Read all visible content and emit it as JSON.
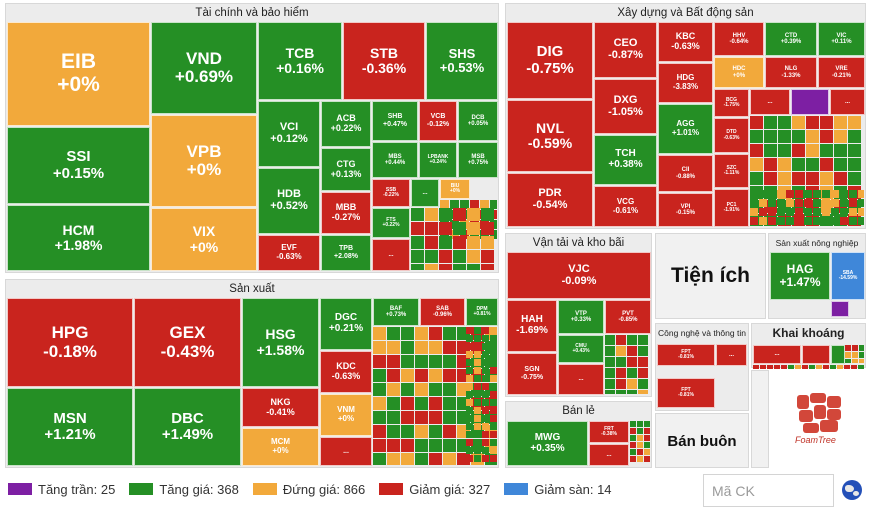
{
  "sectors": [
    {
      "id": "tai-chinh",
      "title": "Tài chính và bảo hiểm",
      "l": 5,
      "t": 3,
      "w": 494,
      "h": 270,
      "style": ""
    },
    {
      "id": "xay-dung",
      "title": "Xây dựng và Bất động sản",
      "l": 505,
      "t": 3,
      "w": 361,
      "h": 226,
      "style": ""
    },
    {
      "id": "san-xuat",
      "title": "Sản xuất",
      "l": 5,
      "t": 279,
      "w": 494,
      "h": 189,
      "style": ""
    },
    {
      "id": "van-tai",
      "title": "Vận tải và kho bãi",
      "l": 505,
      "t": 233,
      "w": 147,
      "h": 164,
      "style": ""
    },
    {
      "id": "ban-le",
      "title": "Bán lẻ",
      "l": 505,
      "t": 401,
      "w": 147,
      "h": 67,
      "style": ""
    },
    {
      "id": "san-xuat-nong-nghiep",
      "title": "Sản xuất nông nghiệp",
      "l": 768,
      "t": 233,
      "w": 98,
      "h": 86,
      "style": "small"
    },
    {
      "id": "cong-nghe",
      "title": "Công nghệ và thông tin",
      "l": 655,
      "t": 323,
      "w": 94,
      "h": 88,
      "style": "small"
    },
    {
      "id": "khai-khoang",
      "title": "Khai khoáng",
      "l": 751,
      "t": 323,
      "w": 115,
      "h": 45,
      "style": "bold"
    }
  ],
  "big_labels": [
    {
      "name": "tien-ich-label",
      "text": "Tiện ích",
      "l": 655,
      "t": 233,
      "w": 111,
      "h": 86,
      "size": 21
    },
    {
      "name": "ban-buon-label",
      "text": "Bán buôn",
      "l": 655,
      "t": 413,
      "w": 94,
      "h": 55,
      "size": 15
    }
  ],
  "stocks": [
    {
      "sym": "EIB",
      "chg": "+0%",
      "c": "flat",
      "l": 7,
      "t": 22,
      "w": 143,
      "h": 104,
      "fs": 21
    },
    {
      "sym": "VND",
      "chg": "+0.69%",
      "c": "up",
      "l": 151,
      "t": 22,
      "w": 106,
      "h": 92,
      "fs": 17
    },
    {
      "sym": "TCB",
      "chg": "+0.16%",
      "c": "up",
      "l": 258,
      "t": 22,
      "w": 84,
      "h": 78,
      "fs": 14
    },
    {
      "sym": "STB",
      "chg": "-0.36%",
      "c": "down",
      "l": 343,
      "t": 22,
      "w": 82,
      "h": 78,
      "fs": 14
    },
    {
      "sym": "SHS",
      "chg": "+0.53%",
      "c": "up",
      "l": 426,
      "t": 22,
      "w": 72,
      "h": 78,
      "fs": 13
    },
    {
      "sym": "SSI",
      "chg": "+0.15%",
      "c": "up",
      "l": 7,
      "t": 127,
      "w": 143,
      "h": 77,
      "fs": 15
    },
    {
      "sym": "VPB",
      "chg": "+0%",
      "c": "flat",
      "l": 151,
      "t": 115,
      "w": 106,
      "h": 92,
      "fs": 17
    },
    {
      "sym": "VCI",
      "chg": "+0.12%",
      "c": "up",
      "l": 258,
      "t": 101,
      "w": 62,
      "h": 66,
      "fs": 11
    },
    {
      "sym": "ACB",
      "chg": "+0.22%",
      "c": "up",
      "l": 321,
      "t": 101,
      "w": 50,
      "h": 46,
      "fs": 9
    },
    {
      "sym": "SHB",
      "chg": "+0.47%",
      "c": "up",
      "l": 372,
      "t": 101,
      "w": 46,
      "h": 40,
      "fs": 7
    },
    {
      "sym": "VCB",
      "chg": "-0.12%",
      "c": "down",
      "l": 419,
      "t": 101,
      "w": 38,
      "h": 40,
      "fs": 7
    },
    {
      "sym": "DCB",
      "chg": "+0.05%",
      "c": "up",
      "l": 458,
      "t": 101,
      "w": 40,
      "h": 40,
      "fs": 6
    },
    {
      "sym": "CTG",
      "chg": "+0.13%",
      "c": "up",
      "l": 321,
      "t": 148,
      "w": 50,
      "h": 43,
      "fs": 9
    },
    {
      "sym": "MBS",
      "chg": "+0.44%",
      "c": "up",
      "l": 372,
      "t": 142,
      "w": 46,
      "h": 36,
      "fs": 6
    },
    {
      "sym": "LPBANK",
      "chg": "+0.24%",
      "c": "up",
      "l": 419,
      "t": 142,
      "w": 38,
      "h": 36,
      "fs": 5
    },
    {
      "sym": "MSB",
      "chg": "+0.75%",
      "c": "up",
      "l": 458,
      "t": 142,
      "w": 40,
      "h": 36,
      "fs": 6
    },
    {
      "sym": "HDB",
      "chg": "+0.52%",
      "c": "up",
      "l": 258,
      "t": 168,
      "w": 62,
      "h": 66,
      "fs": 11
    },
    {
      "sym": "MBB",
      "chg": "-0.27%",
      "c": "down",
      "l": 321,
      "t": 192,
      "w": 50,
      "h": 42,
      "fs": 9
    },
    {
      "sym": "SSB",
      "chg": "-0.22%",
      "c": "down",
      "l": 372,
      "t": 179,
      "w": 38,
      "h": 28,
      "fs": 5
    },
    {
      "sym": "...",
      "chg": "",
      "c": "up",
      "l": 411,
      "t": 179,
      "w": 28,
      "h": 28,
      "fs": 6
    },
    {
      "sym": "BIU",
      "chg": "+0%",
      "c": "flat",
      "l": 440,
      "t": 179,
      "w": 30,
      "h": 20,
      "fs": 5
    },
    {
      "sym": "HCM",
      "chg": "+1.98%",
      "c": "up",
      "l": 7,
      "t": 205,
      "w": 143,
      "h": 66,
      "fs": 14
    },
    {
      "sym": "VIX",
      "chg": "+0%",
      "c": "flat",
      "l": 151,
      "t": 208,
      "w": 106,
      "h": 63,
      "fs": 14
    },
    {
      "sym": "FTS",
      "chg": "+0.22%",
      "c": "up",
      "l": 372,
      "t": 208,
      "w": 38,
      "h": 30,
      "fs": 5
    },
    {
      "sym": "EVF",
      "chg": "-0.63%",
      "c": "down",
      "l": 258,
      "t": 235,
      "w": 62,
      "h": 36,
      "fs": 8
    },
    {
      "sym": "TPB",
      "chg": "+2.08%",
      "c": "up",
      "l": 321,
      "t": 235,
      "w": 50,
      "h": 36,
      "fs": 7
    },
    {
      "sym": "...",
      "chg": "",
      "c": "down",
      "l": 372,
      "t": 239,
      "w": 38,
      "h": 32,
      "fs": 6
    },
    {
      "sym": "HPG",
      "chg": "-0.18%",
      "c": "down",
      "l": 7,
      "t": 298,
      "w": 126,
      "h": 89,
      "fs": 17
    },
    {
      "sym": "GEX",
      "chg": "-0.43%",
      "c": "down",
      "l": 134,
      "t": 298,
      "w": 107,
      "h": 89,
      "fs": 17
    },
    {
      "sym": "HSG",
      "chg": "+1.58%",
      "c": "up",
      "l": 242,
      "t": 298,
      "w": 77,
      "h": 89,
      "fs": 14
    },
    {
      "sym": "DGC",
      "chg": "+0.21%",
      "c": "up",
      "l": 320,
      "t": 298,
      "w": 52,
      "h": 52,
      "fs": 10
    },
    {
      "sym": "BAF",
      "chg": "+0.73%",
      "c": "up",
      "l": 373,
      "t": 298,
      "w": 46,
      "h": 28,
      "fs": 6
    },
    {
      "sym": "SAB",
      "chg": "-0.96%",
      "c": "down",
      "l": 420,
      "t": 298,
      "w": 45,
      "h": 28,
      "fs": 6
    },
    {
      "sym": "DPM",
      "chg": "+0.81%",
      "c": "up",
      "l": 466,
      "t": 298,
      "w": 32,
      "h": 28,
      "fs": 5
    },
    {
      "sym": "KDC",
      "chg": "-0.63%",
      "c": "down",
      "l": 320,
      "t": 351,
      "w": 52,
      "h": 42,
      "fs": 9
    },
    {
      "sym": "MSN",
      "chg": "+1.21%",
      "c": "up",
      "l": 7,
      "t": 388,
      "w": 126,
      "h": 78,
      "fs": 15
    },
    {
      "sym": "DBC",
      "chg": "+1.49%",
      "c": "up",
      "l": 134,
      "t": 388,
      "w": 107,
      "h": 78,
      "fs": 15
    },
    {
      "sym": "NKG",
      "chg": "-0.41%",
      "c": "down",
      "l": 242,
      "t": 388,
      "w": 77,
      "h": 39,
      "fs": 9
    },
    {
      "sym": "VNM",
      "chg": "+0%",
      "c": "flat",
      "l": 320,
      "t": 394,
      "w": 52,
      "h": 42,
      "fs": 8
    },
    {
      "sym": "MCM",
      "chg": "+0%",
      "c": "flat",
      "l": 242,
      "t": 428,
      "w": 77,
      "h": 38,
      "fs": 8
    },
    {
      "sym": "...",
      "chg": "",
      "c": "down",
      "l": 320,
      "t": 437,
      "w": 52,
      "h": 29,
      "fs": 7
    },
    {
      "sym": "DIG",
      "chg": "-0.75%",
      "c": "down",
      "l": 507,
      "t": 22,
      "w": 86,
      "h": 77,
      "fs": 15
    },
    {
      "sym": "CEO",
      "chg": "-0.87%",
      "c": "down",
      "l": 594,
      "t": 22,
      "w": 63,
      "h": 56,
      "fs": 11
    },
    {
      "sym": "KBC",
      "chg": "-0.63%",
      "c": "down",
      "l": 658,
      "t": 22,
      "w": 55,
      "h": 40,
      "fs": 9
    },
    {
      "sym": "HHV",
      "chg": "-0.64%",
      "c": "down",
      "l": 714,
      "t": 22,
      "w": 50,
      "h": 34,
      "fs": 6
    },
    {
      "sym": "CTD",
      "chg": "+0.39%",
      "c": "up",
      "l": 765,
      "t": 22,
      "w": 52,
      "h": 34,
      "fs": 6
    },
    {
      "sym": "VIC",
      "chg": "+0.11%",
      "c": "up",
      "l": 818,
      "t": 22,
      "w": 47,
      "h": 34,
      "fs": 6
    },
    {
      "sym": "HDG",
      "chg": "-3.83%",
      "c": "down",
      "l": 658,
      "t": 63,
      "w": 55,
      "h": 40,
      "fs": 8
    },
    {
      "sym": "HDC",
      "chg": "+0%",
      "c": "flat",
      "l": 714,
      "t": 57,
      "w": 50,
      "h": 31,
      "fs": 6
    },
    {
      "sym": "NLG",
      "chg": "-1.33%",
      "c": "down",
      "l": 765,
      "t": 57,
      "w": 52,
      "h": 31,
      "fs": 6
    },
    {
      "sym": "VRE",
      "chg": "-0.21%",
      "c": "down",
      "l": 818,
      "t": 57,
      "w": 47,
      "h": 31,
      "fs": 6
    },
    {
      "sym": "DXG",
      "chg": "-1.05%",
      "c": "down",
      "l": 594,
      "t": 79,
      "w": 63,
      "h": 55,
      "fs": 11
    },
    {
      "sym": "BCG",
      "chg": "-1.75%",
      "c": "down",
      "l": 714,
      "t": 89,
      "w": 35,
      "h": 28,
      "fs": 5
    },
    {
      "sym": "...",
      "chg": "",
      "c": "down",
      "l": 750,
      "t": 89,
      "w": 40,
      "h": 26,
      "fs": 6
    },
    {
      "sym": "",
      "chg": "",
      "c": "ceil",
      "l": 791,
      "t": 89,
      "w": 38,
      "h": 26,
      "fs": 6
    },
    {
      "sym": "...",
      "chg": "",
      "c": "down",
      "l": 830,
      "t": 89,
      "w": 35,
      "h": 26,
      "fs": 6
    },
    {
      "sym": "NVL",
      "chg": "-0.59%",
      "c": "down",
      "l": 507,
      "t": 100,
      "w": 86,
      "h": 72,
      "fs": 14
    },
    {
      "sym": "AGG",
      "chg": "+1.01%",
      "c": "up",
      "l": 658,
      "t": 104,
      "w": 55,
      "h": 50,
      "fs": 8
    },
    {
      "sym": "DTD",
      "chg": "-0.63%",
      "c": "down",
      "l": 714,
      "t": 118,
      "w": 35,
      "h": 35,
      "fs": 5
    },
    {
      "sym": "TCH",
      "chg": "+0.38%",
      "c": "up",
      "l": 594,
      "t": 135,
      "w": 63,
      "h": 50,
      "fs": 10
    },
    {
      "sym": "CII",
      "chg": "-0.88%",
      "c": "down",
      "l": 658,
      "t": 155,
      "w": 55,
      "h": 37,
      "fs": 6
    },
    {
      "sym": "SZC",
      "chg": "-1.11%",
      "c": "down",
      "l": 714,
      "t": 154,
      "w": 35,
      "h": 34,
      "fs": 5
    },
    {
      "sym": "PDR",
      "chg": "-0.54%",
      "c": "down",
      "l": 507,
      "t": 173,
      "w": 86,
      "h": 54,
      "fs": 11
    },
    {
      "sym": "VCG",
      "chg": "-0.61%",
      "c": "down",
      "l": 594,
      "t": 186,
      "w": 63,
      "h": 41,
      "fs": 8
    },
    {
      "sym": "VPI",
      "chg": "-0.15%",
      "c": "down",
      "l": 658,
      "t": 193,
      "w": 55,
      "h": 34,
      "fs": 6
    },
    {
      "sym": "PC1",
      "chg": "-1.91%",
      "c": "down",
      "l": 714,
      "t": 189,
      "w": 35,
      "h": 38,
      "fs": 5
    },
    {
      "sym": "VJC",
      "chg": "-0.09%",
      "c": "down",
      "l": 507,
      "t": 252,
      "w": 144,
      "h": 47,
      "fs": 11
    },
    {
      "sym": "HAH",
      "chg": "-1.69%",
      "c": "down",
      "l": 507,
      "t": 300,
      "w": 50,
      "h": 52,
      "fs": 10
    },
    {
      "sym": "VTP",
      "chg": "+0.33%",
      "c": "up",
      "l": 558,
      "t": 300,
      "w": 46,
      "h": 34,
      "fs": 6
    },
    {
      "sym": "PVT",
      "chg": "-0.85%",
      "c": "down",
      "l": 605,
      "t": 300,
      "w": 46,
      "h": 34,
      "fs": 6
    },
    {
      "sym": "CMU",
      "chg": "+0.43%",
      "c": "up",
      "l": 558,
      "t": 335,
      "w": 46,
      "h": 28,
      "fs": 5
    },
    {
      "sym": "SGN",
      "chg": "-0.75%",
      "c": "down",
      "l": 507,
      "t": 353,
      "w": 50,
      "h": 42,
      "fs": 7
    },
    {
      "sym": "...",
      "chg": "",
      "c": "down",
      "l": 558,
      "t": 364,
      "w": 46,
      "h": 31,
      "fs": 6
    },
    {
      "sym": "MWG",
      "chg": "+0.35%",
      "c": "up",
      "l": 507,
      "t": 421,
      "w": 81,
      "h": 45,
      "fs": 10
    },
    {
      "sym": "FRT",
      "chg": "-0.38%",
      "c": "down",
      "l": 589,
      "t": 421,
      "w": 40,
      "h": 22,
      "fs": 5
    },
    {
      "sym": "...",
      "chg": "",
      "c": "down",
      "l": 589,
      "t": 444,
      "w": 40,
      "h": 22,
      "fs": 6
    },
    {
      "sym": "HAG",
      "chg": "+1.47%",
      "c": "up",
      "l": 770,
      "t": 252,
      "w": 60,
      "h": 48,
      "fs": 12
    },
    {
      "sym": "SBA",
      "chg": "-14.59%",
      "c": "floor",
      "l": 831,
      "t": 252,
      "w": 34,
      "h": 48,
      "fs": 5
    },
    {
      "sym": "",
      "chg": "",
      "c": "ceil",
      "l": 831,
      "t": 301,
      "w": 18,
      "h": 16,
      "fs": 5
    },
    {
      "sym": "FPT",
      "chg": "-0.81%",
      "c": "down",
      "l": 657,
      "t": 344,
      "w": 58,
      "h": 22,
      "fs": 5
    },
    {
      "sym": "...",
      "chg": "",
      "c": "down",
      "l": 716,
      "t": 344,
      "w": 31,
      "h": 22,
      "fs": 6
    },
    {
      "sym": "FPT",
      "chg": "-0.81%",
      "c": "down",
      "l": 657,
      "t": 378,
      "w": 58,
      "h": 30,
      "fs": 5
    },
    {
      "sym": "...",
      "chg": "",
      "c": "down",
      "l": 753,
      "t": 345,
      "w": 48,
      "h": 19,
      "fs": 6
    },
    {
      "sym": "",
      "chg": "",
      "c": "down",
      "l": 802,
      "t": 345,
      "w": 28,
      "h": 19,
      "fs": 5
    },
    {
      "sym": "",
      "chg": "",
      "c": "up",
      "l": 831,
      "t": 345,
      "w": 14,
      "h": 19,
      "fs": 5
    }
  ],
  "legend": [
    {
      "name": "legend-ceiling",
      "label": "Tăng trần: 25",
      "color": "#7d1fa3"
    },
    {
      "name": "legend-up",
      "label": "Tăng giá: 368",
      "color": "#258f25"
    },
    {
      "name": "legend-flat",
      "label": "Đứng giá: 866",
      "color": "#f2a93b"
    },
    {
      "name": "legend-down",
      "label": "Giảm giá: 327",
      "color": "#c9241e"
    },
    {
      "name": "legend-floor",
      "label": "Giảm sàn: 14",
      "color": "#3f87d9"
    }
  ],
  "search": {
    "placeholder": "Mã CK"
  },
  "logo": {
    "text": "FoamTree"
  }
}
